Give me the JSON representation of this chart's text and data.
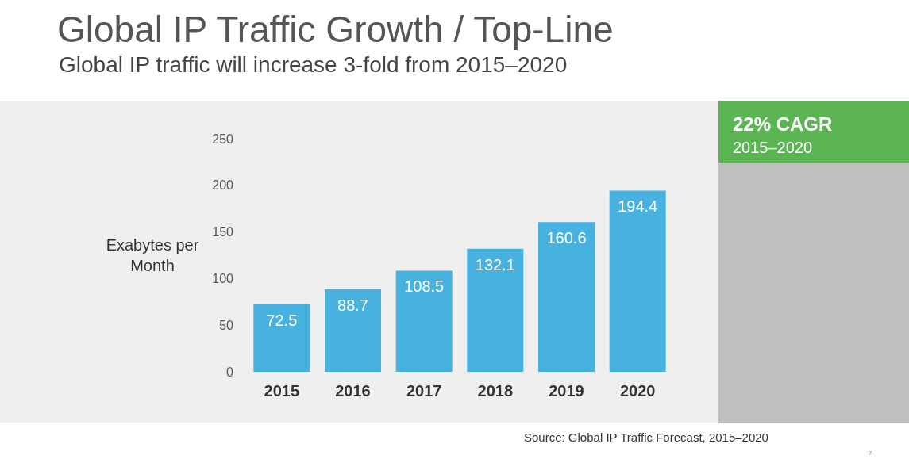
{
  "chart_data": {
    "type": "bar",
    "title": "Global IP Traffic Growth / Top-Line",
    "subtitle": "Global IP traffic will increase 3-fold from 2015–2020",
    "ylabel": "Exabytes per Month",
    "categories": [
      "2015",
      "2016",
      "2017",
      "2018",
      "2019",
      "2020"
    ],
    "values": [
      72.5,
      88.7,
      108.5,
      132.1,
      160.6,
      194.4
    ],
    "color": "#47b2e0",
    "ylim": [
      0,
      250
    ],
    "yticks": [
      0,
      50,
      100,
      150,
      200,
      250
    ],
    "grid": false,
    "data_labels": true,
    "annotations": [
      "22% CAGR",
      "2015–2020",
      "Source: Global IP Traffic Forecast, 2015–2020",
      "7"
    ]
  }
}
